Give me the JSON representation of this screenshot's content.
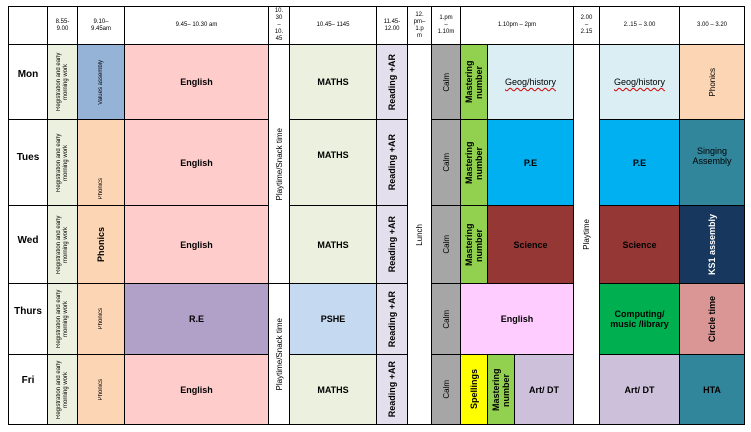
{
  "colors": {
    "white": "#ffffff",
    "registration": "#ebf1de",
    "values_assembly": "#95b3d7",
    "phonics": "#fcd5b4",
    "english": "#ffcccc",
    "playtime": "#ffffff",
    "maths": "#ebf1de",
    "reading": "#e4dfec",
    "lunch": "#ffffff",
    "calm": "#a6a6a6",
    "mastering_number": "#92d050",
    "geog_history": "#daeef3",
    "pe": "#00b0f0",
    "science": "#953735",
    "re": "#b1a0c7",
    "pshe": "#c5d9f1",
    "english_thurs": "#ffccff",
    "computing": "#00b050",
    "spellings": "#ffff00",
    "art_dt": "#ccc0da",
    "singing": "#31869b",
    "ks1": "#17375e",
    "circle_time": "#da9694"
  },
  "header": {
    "t1": "8.55-\n9.00",
    "t2": "9.10–\n9.45am",
    "t3": "9.45– 10.30 am",
    "t4": "10.\n30\n–\n10.\n45",
    "t5": "10.45– 1145",
    "t6": "11.45-\n12.00",
    "t7": "12.\npm–\n1.p\nm",
    "t8": "1.pm\n–\n1.10m",
    "t9": "1.10pm – 2pm",
    "t10": "2.00\n–\n2.15",
    "t11": "2..15 – 3.00",
    "t12": "3.00 – 3.20"
  },
  "days": {
    "mon": "Mon",
    "tue": "Tues",
    "wed": "Wed",
    "thu": "Thurs",
    "fri": "Fri"
  },
  "cells": {
    "registration": "Registration and early morning work",
    "values_assembly": "Values assembly",
    "phonics_small": "Phonics",
    "phonics": "Phonics",
    "english": "English",
    "playtime_snack": "Playtime/Snack time",
    "maths": "MATHS",
    "reading_ar": "Reading +AR",
    "lunch": "Lunch",
    "calm": "Calm",
    "mastering_number": "Mastering number",
    "geog_history": "Geog/history",
    "pe": "P.E",
    "science": "Science",
    "re": "R.E",
    "pshe": "PSHE",
    "english_thurs": "English",
    "computing": "Computing/ music /library",
    "spellings": "Spellings",
    "art_dt": "Art/ DT",
    "playtime": "Playtime",
    "singing": "Singing Assembly",
    "ks1": "KS1 assembly",
    "circle_time": "Circle time",
    "hta": "HTA"
  }
}
